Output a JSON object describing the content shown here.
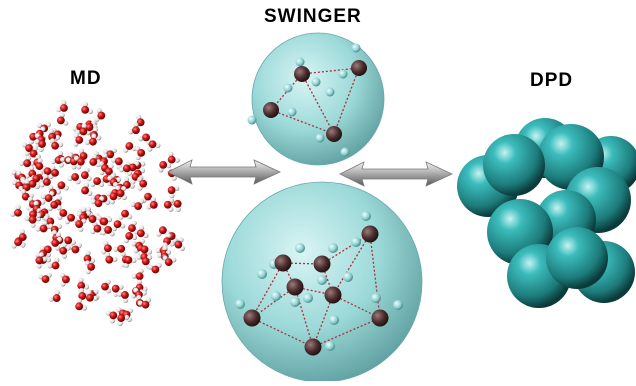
{
  "labels": {
    "md": "MD",
    "swinger": "SWINGER",
    "dpd": "DPD"
  },
  "colors": {
    "oxygen": "#cc1111",
    "hydrogen": "#eeeeee",
    "cg_bead": "#2fa9a9",
    "sphere": "#9fdede",
    "dark_atom": "#5a3a3a",
    "bond": "#b0303a",
    "arrow": "#b8b8b8"
  },
  "icons": {
    "arrow_left": "double-arrow-icon",
    "arrow_right": "double-arrow-icon"
  }
}
